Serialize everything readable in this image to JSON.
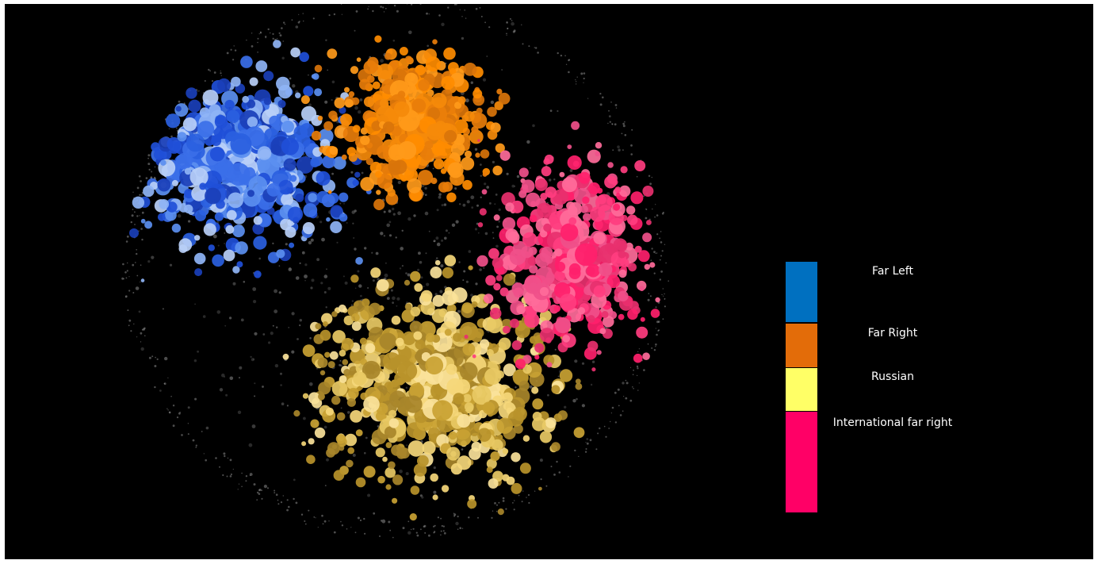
{
  "legend": {
    "items": [
      {
        "key": "far_left",
        "label": "Far Left",
        "color": "#0070C0"
      },
      {
        "key": "far_right",
        "label": "Far Right",
        "color": "#E36C09"
      },
      {
        "key": "russian",
        "label": "Russian",
        "color": "#FFFF66"
      },
      {
        "key": "international_far_right",
        "label": "International far right",
        "color": "#FF0066"
      }
    ]
  },
  "clusters": {
    "far_left": {
      "colors": [
        "#1f4fd8",
        "#2a5fe0",
        "#3b6fe8",
        "#5b8ff0",
        "#8fb4f5",
        "#b8cff7",
        "#1a3fb8"
      ]
    },
    "far_right": {
      "colors": [
        "#ff8c00",
        "#f58a0a",
        "#e87d0a",
        "#ff9a1a",
        "#d9740a"
      ]
    },
    "russian": {
      "colors": [
        "#f5d77a",
        "#e8c964",
        "#c9a233",
        "#b8922a",
        "#fae29a",
        "#a8862a"
      ]
    },
    "international_far_right": {
      "colors": [
        "#ff1f6b",
        "#ff3d7f",
        "#f0508a",
        "#ff6b9a",
        "#e8306e"
      ]
    },
    "background": {
      "colors": [
        "#6a6a6a",
        "#8a8a8a",
        "#4a4a4a"
      ]
    }
  }
}
